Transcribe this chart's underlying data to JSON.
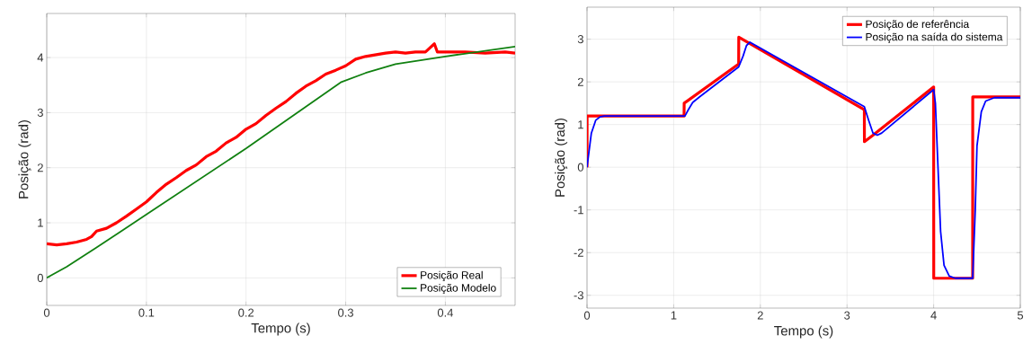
{
  "chart_data": [
    {
      "type": "line",
      "xlabel": "Tempo (s)",
      "ylabel": "Posição (rad)",
      "xlim": [
        0,
        0.47
      ],
      "ylim": [
        -0.5,
        4.8
      ],
      "xticks": [
        0,
        0.1,
        0.2,
        0.3,
        0.4
      ],
      "yticks": [
        0,
        1,
        2,
        3,
        4
      ],
      "grid": true,
      "legend": "bottom right",
      "series": [
        {
          "name": "Posição Real",
          "color": "#ff0000",
          "x": [
            0,
            0.01,
            0.02,
            0.03,
            0.04,
            0.045,
            0.05,
            0.06,
            0.07,
            0.08,
            0.09,
            0.1,
            0.11,
            0.12,
            0.13,
            0.14,
            0.15,
            0.16,
            0.17,
            0.18,
            0.19,
            0.2,
            0.21,
            0.22,
            0.23,
            0.24,
            0.25,
            0.26,
            0.27,
            0.28,
            0.29,
            0.3,
            0.31,
            0.32,
            0.33,
            0.34,
            0.35,
            0.36,
            0.37,
            0.38,
            0.389,
            0.392,
            0.4,
            0.42,
            0.44,
            0.46,
            0.47
          ],
          "values": [
            0.62,
            0.6,
            0.62,
            0.65,
            0.7,
            0.75,
            0.85,
            0.9,
            1.0,
            1.12,
            1.25,
            1.38,
            1.55,
            1.7,
            1.82,
            1.95,
            2.05,
            2.2,
            2.3,
            2.45,
            2.55,
            2.7,
            2.8,
            2.95,
            3.08,
            3.2,
            3.35,
            3.48,
            3.58,
            3.7,
            3.77,
            3.85,
            3.97,
            4.02,
            4.05,
            4.08,
            4.1,
            4.08,
            4.1,
            4.1,
            4.25,
            4.1,
            4.1,
            4.1,
            4.08,
            4.1,
            4.08
          ]
        },
        {
          "name": "Posição Modelo",
          "color": "#108010",
          "x": [
            0,
            0.02,
            0.05,
            0.1,
            0.2,
            0.295,
            0.32,
            0.35,
            0.4,
            0.47
          ],
          "values": [
            0,
            0.2,
            0.55,
            1.15,
            2.35,
            3.55,
            3.72,
            3.88,
            4.02,
            4.2
          ]
        }
      ]
    },
    {
      "type": "line",
      "xlabel": "Tempo (s)",
      "ylabel": "Posição (rad)",
      "xlim": [
        0,
        5
      ],
      "ylim": [
        -3.3,
        3.75
      ],
      "xticks": [
        0,
        1,
        2,
        3,
        4,
        5
      ],
      "yticks": [
        -3,
        -2,
        -1,
        0,
        1,
        2,
        3
      ],
      "grid": true,
      "legend": "top right",
      "series": [
        {
          "name": "Posição de referência",
          "color": "#ff0000",
          "x": [
            0,
            0.001,
            1.12,
            1.121,
            1.75,
            1.751,
            3.2,
            3.201,
            3.3,
            4.0,
            4.001,
            4.45,
            4.451,
            5
          ],
          "values": [
            0,
            1.2,
            1.2,
            1.5,
            2.42,
            3.05,
            1.35,
            0.6,
            0.75,
            1.88,
            -2.6,
            -2.6,
            1.65,
            1.65
          ]
        },
        {
          "name": "Posição na saída do sistema",
          "color": "#0000ff",
          "x": [
            0,
            0.05,
            0.1,
            0.15,
            0.2,
            1.13,
            1.17,
            1.22,
            1.3,
            1.75,
            1.8,
            1.84,
            1.88,
            3.2,
            3.25,
            3.3,
            3.35,
            3.4,
            4.0,
            4.02,
            4.05,
            4.08,
            4.12,
            4.18,
            4.25,
            4.45,
            4.48,
            4.5,
            4.55,
            4.6,
            4.7,
            5
          ],
          "values": [
            0,
            0.8,
            1.1,
            1.18,
            1.2,
            1.2,
            1.35,
            1.52,
            1.65,
            2.35,
            2.6,
            2.85,
            2.93,
            1.42,
            1.1,
            0.8,
            0.75,
            0.8,
            1.82,
            1.5,
            0,
            -1.5,
            -2.3,
            -2.55,
            -2.6,
            -2.6,
            -1.0,
            0.5,
            1.3,
            1.55,
            1.63,
            1.63
          ]
        }
      ]
    }
  ]
}
